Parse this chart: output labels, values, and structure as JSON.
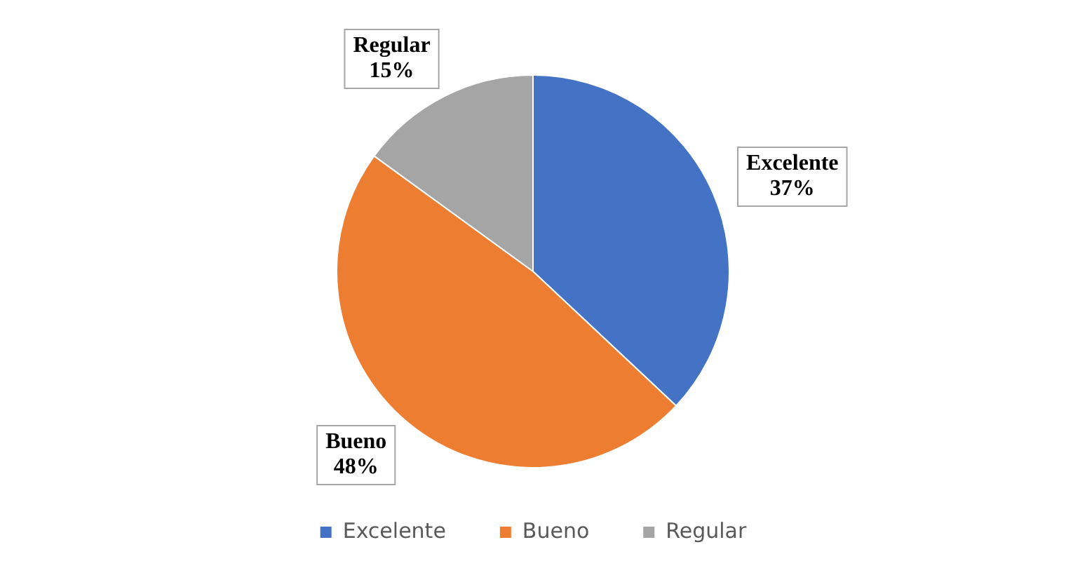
{
  "chart_data": {
    "type": "pie",
    "categories": [
      "Excelente",
      "Bueno",
      "Regular"
    ],
    "values": [
      37,
      48,
      15
    ],
    "value_labels": [
      "37%",
      "48%",
      "15%"
    ],
    "colors": [
      "#4472c4",
      "#ed7d31",
      "#a5a5a5"
    ],
    "legend": "bottom"
  }
}
